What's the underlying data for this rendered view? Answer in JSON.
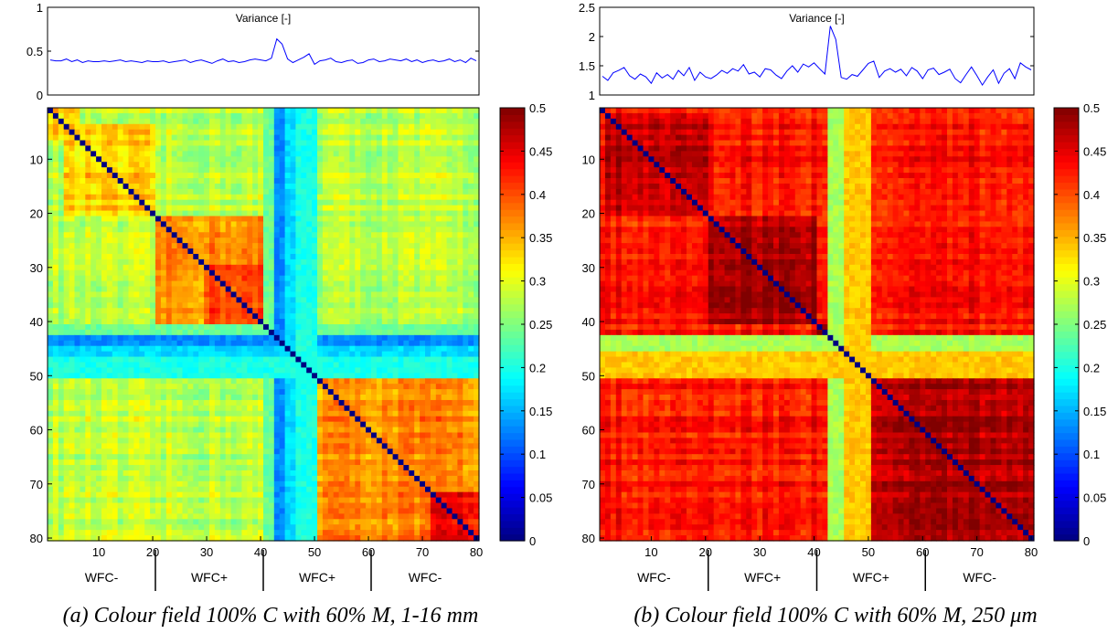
{
  "chart_data": [
    {
      "id": "a",
      "caption": "(a) Colour field 100% C with 60% M, 1-16 mm",
      "variance_plot": {
        "type": "line",
        "title": "Variance [-]",
        "ylim": [
          0,
          1
        ],
        "yticks": [
          "0",
          "0.5",
          "1"
        ],
        "x": [
          1,
          2,
          3,
          4,
          5,
          6,
          7,
          8,
          9,
          10,
          11,
          12,
          13,
          14,
          15,
          16,
          17,
          18,
          19,
          20,
          21,
          22,
          23,
          24,
          25,
          26,
          27,
          28,
          29,
          30,
          31,
          32,
          33,
          34,
          35,
          36,
          37,
          38,
          39,
          40,
          41,
          42,
          43,
          44,
          45,
          46,
          47,
          48,
          49,
          50,
          51,
          52,
          53,
          54,
          55,
          56,
          57,
          58,
          59,
          60,
          61,
          62,
          63,
          64,
          65,
          66,
          67,
          68,
          69,
          70,
          71,
          72,
          73,
          74,
          75,
          76,
          77,
          78,
          79,
          80
        ],
        "values": [
          0.4,
          0.39,
          0.39,
          0.41,
          0.38,
          0.4,
          0.37,
          0.39,
          0.38,
          0.38,
          0.39,
          0.38,
          0.39,
          0.4,
          0.38,
          0.39,
          0.38,
          0.37,
          0.39,
          0.38,
          0.38,
          0.39,
          0.37,
          0.38,
          0.39,
          0.4,
          0.37,
          0.39,
          0.4,
          0.38,
          0.36,
          0.39,
          0.41,
          0.38,
          0.39,
          0.37,
          0.38,
          0.4,
          0.41,
          0.4,
          0.39,
          0.42,
          0.64,
          0.58,
          0.41,
          0.37,
          0.4,
          0.43,
          0.47,
          0.35,
          0.39,
          0.4,
          0.42,
          0.38,
          0.37,
          0.39,
          0.4,
          0.36,
          0.37,
          0.4,
          0.41,
          0.38,
          0.39,
          0.41,
          0.4,
          0.39,
          0.41,
          0.38,
          0.4,
          0.37,
          0.39,
          0.4,
          0.38,
          0.39,
          0.41,
          0.38,
          0.4,
          0.37,
          0.42,
          0.39
        ],
        "line_color": "#0000ff"
      },
      "heatmap": {
        "type": "heatmap",
        "size": 80,
        "xticks": [
          "10",
          "20",
          "30",
          "40",
          "50",
          "60",
          "70",
          "80"
        ],
        "yticks": [
          "10",
          "20",
          "30",
          "40",
          "50",
          "60",
          "70",
          "80"
        ],
        "default_value": 0.28,
        "diagonal_value": 0,
        "blocks": [
          {
            "rows": [
              1,
              6
            ],
            "cols": [
              1,
              6
            ],
            "value": 0.34
          },
          {
            "rows": [
              4,
              20
            ],
            "cols": [
              4,
              20
            ],
            "value": 0.33
          },
          {
            "rows": [
              21,
              41
            ],
            "cols": [
              21,
              41
            ],
            "value": 0.37
          },
          {
            "rows": [
              30,
              40
            ],
            "cols": [
              30,
              40
            ],
            "value": 0.41
          },
          {
            "rows": [
              41,
              42
            ],
            "cols": [
              41,
              42
            ],
            "value": 0.48
          },
          {
            "rows": [
              51,
              80
            ],
            "cols": [
              51,
              80
            ],
            "value": 0.37
          },
          {
            "rows": [
              72,
              80
            ],
            "cols": [
              72,
              80
            ],
            "value": 0.44
          }
        ],
        "bands": [
          {
            "range": [
              41,
              42
            ],
            "value": 0.24
          },
          {
            "range": [
              43,
              44
            ],
            "value": 0.13
          },
          {
            "range": [
              45,
              46
            ],
            "value": 0.17
          },
          {
            "range": [
              47,
              50
            ],
            "value": 0.2
          }
        ],
        "colorbar": {
          "range": [
            0,
            0.5
          ],
          "ticks": [
            "0",
            "0.05",
            "0.1",
            "0.15",
            "0.2",
            "0.25",
            "0.3",
            "0.35",
            "0.4",
            "0.45",
            "0.5"
          ]
        }
      },
      "regions": [
        {
          "label": "WFC-",
          "center": 10.5
        },
        {
          "label": "WFC+",
          "center": 30.5
        },
        {
          "label": "WFC+",
          "center": 50.5
        },
        {
          "label": "WFC-",
          "center": 70.5
        }
      ],
      "region_separators": [
        20,
        40,
        60
      ]
    },
    {
      "id": "b",
      "caption": "(b) Colour field 100% C with 60% M, 250 μm",
      "variance_plot": {
        "type": "line",
        "title": "Variance [-]",
        "ylim": [
          1,
          2.5
        ],
        "yticks": [
          "1",
          "1.5",
          "2",
          "2.5"
        ],
        "x": [
          1,
          2,
          3,
          4,
          5,
          6,
          7,
          8,
          9,
          10,
          11,
          12,
          13,
          14,
          15,
          16,
          17,
          18,
          19,
          20,
          21,
          22,
          23,
          24,
          25,
          26,
          27,
          28,
          29,
          30,
          31,
          32,
          33,
          34,
          35,
          36,
          37,
          38,
          39,
          40,
          41,
          42,
          43,
          44,
          45,
          46,
          47,
          48,
          49,
          50,
          51,
          52,
          53,
          54,
          55,
          56,
          57,
          58,
          59,
          60,
          61,
          62,
          63,
          64,
          65,
          66,
          67,
          68,
          69,
          70,
          71,
          72,
          73,
          74,
          75,
          76,
          77,
          78,
          79,
          80
        ],
        "values": [
          1.32,
          1.25,
          1.38,
          1.42,
          1.47,
          1.33,
          1.27,
          1.36,
          1.31,
          1.2,
          1.38,
          1.29,
          1.35,
          1.27,
          1.42,
          1.33,
          1.47,
          1.25,
          1.39,
          1.31,
          1.28,
          1.34,
          1.42,
          1.37,
          1.45,
          1.41,
          1.52,
          1.36,
          1.39,
          1.31,
          1.45,
          1.43,
          1.34,
          1.28,
          1.41,
          1.5,
          1.39,
          1.53,
          1.48,
          1.55,
          1.45,
          1.36,
          2.18,
          1.95,
          1.3,
          1.27,
          1.35,
          1.32,
          1.43,
          1.54,
          1.58,
          1.3,
          1.41,
          1.45,
          1.39,
          1.44,
          1.33,
          1.47,
          1.41,
          1.28,
          1.43,
          1.46,
          1.35,
          1.39,
          1.44,
          1.28,
          1.21,
          1.35,
          1.48,
          1.33,
          1.17,
          1.31,
          1.43,
          1.2,
          1.37,
          1.45,
          1.28,
          1.55,
          1.48,
          1.43
        ],
        "line_color": "#0000ff"
      },
      "heatmap": {
        "type": "heatmap",
        "size": 80,
        "xticks": [
          "10",
          "20",
          "30",
          "40",
          "50",
          "60",
          "70",
          "80"
        ],
        "yticks": [
          "10",
          "20",
          "30",
          "40",
          "50",
          "60",
          "70",
          "80"
        ],
        "default_value": 0.43,
        "diagonal_value": 0,
        "blocks": [
          {
            "rows": [
              2,
              20
            ],
            "cols": [
              2,
              20
            ],
            "value": 0.47
          },
          {
            "rows": [
              21,
              40
            ],
            "cols": [
              21,
              40
            ],
            "value": 0.48
          },
          {
            "rows": [
              41,
              42
            ],
            "cols": [
              41,
              42
            ],
            "value": 0.5
          },
          {
            "rows": [
              51,
              80
            ],
            "cols": [
              51,
              80
            ],
            "value": 0.48
          }
        ],
        "bands": [
          {
            "range": [
              43,
              45
            ],
            "value": 0.27
          },
          {
            "range": [
              46,
              50
            ],
            "value": 0.34
          }
        ],
        "colorbar": {
          "range": [
            0,
            0.5
          ],
          "ticks": [
            "0",
            "0.05",
            "0.1",
            "0.15",
            "0.2",
            "0.25",
            "0.3",
            "0.35",
            "0.4",
            "0.45",
            "0.5"
          ]
        }
      },
      "regions": [
        {
          "label": "WFC-",
          "center": 10.5
        },
        {
          "label": "WFC+",
          "center": 30.5
        },
        {
          "label": "WFC+",
          "center": 50.5
        },
        {
          "label": "WFC-",
          "center": 70.5
        }
      ],
      "region_separators": [
        20,
        40,
        60
      ]
    }
  ]
}
